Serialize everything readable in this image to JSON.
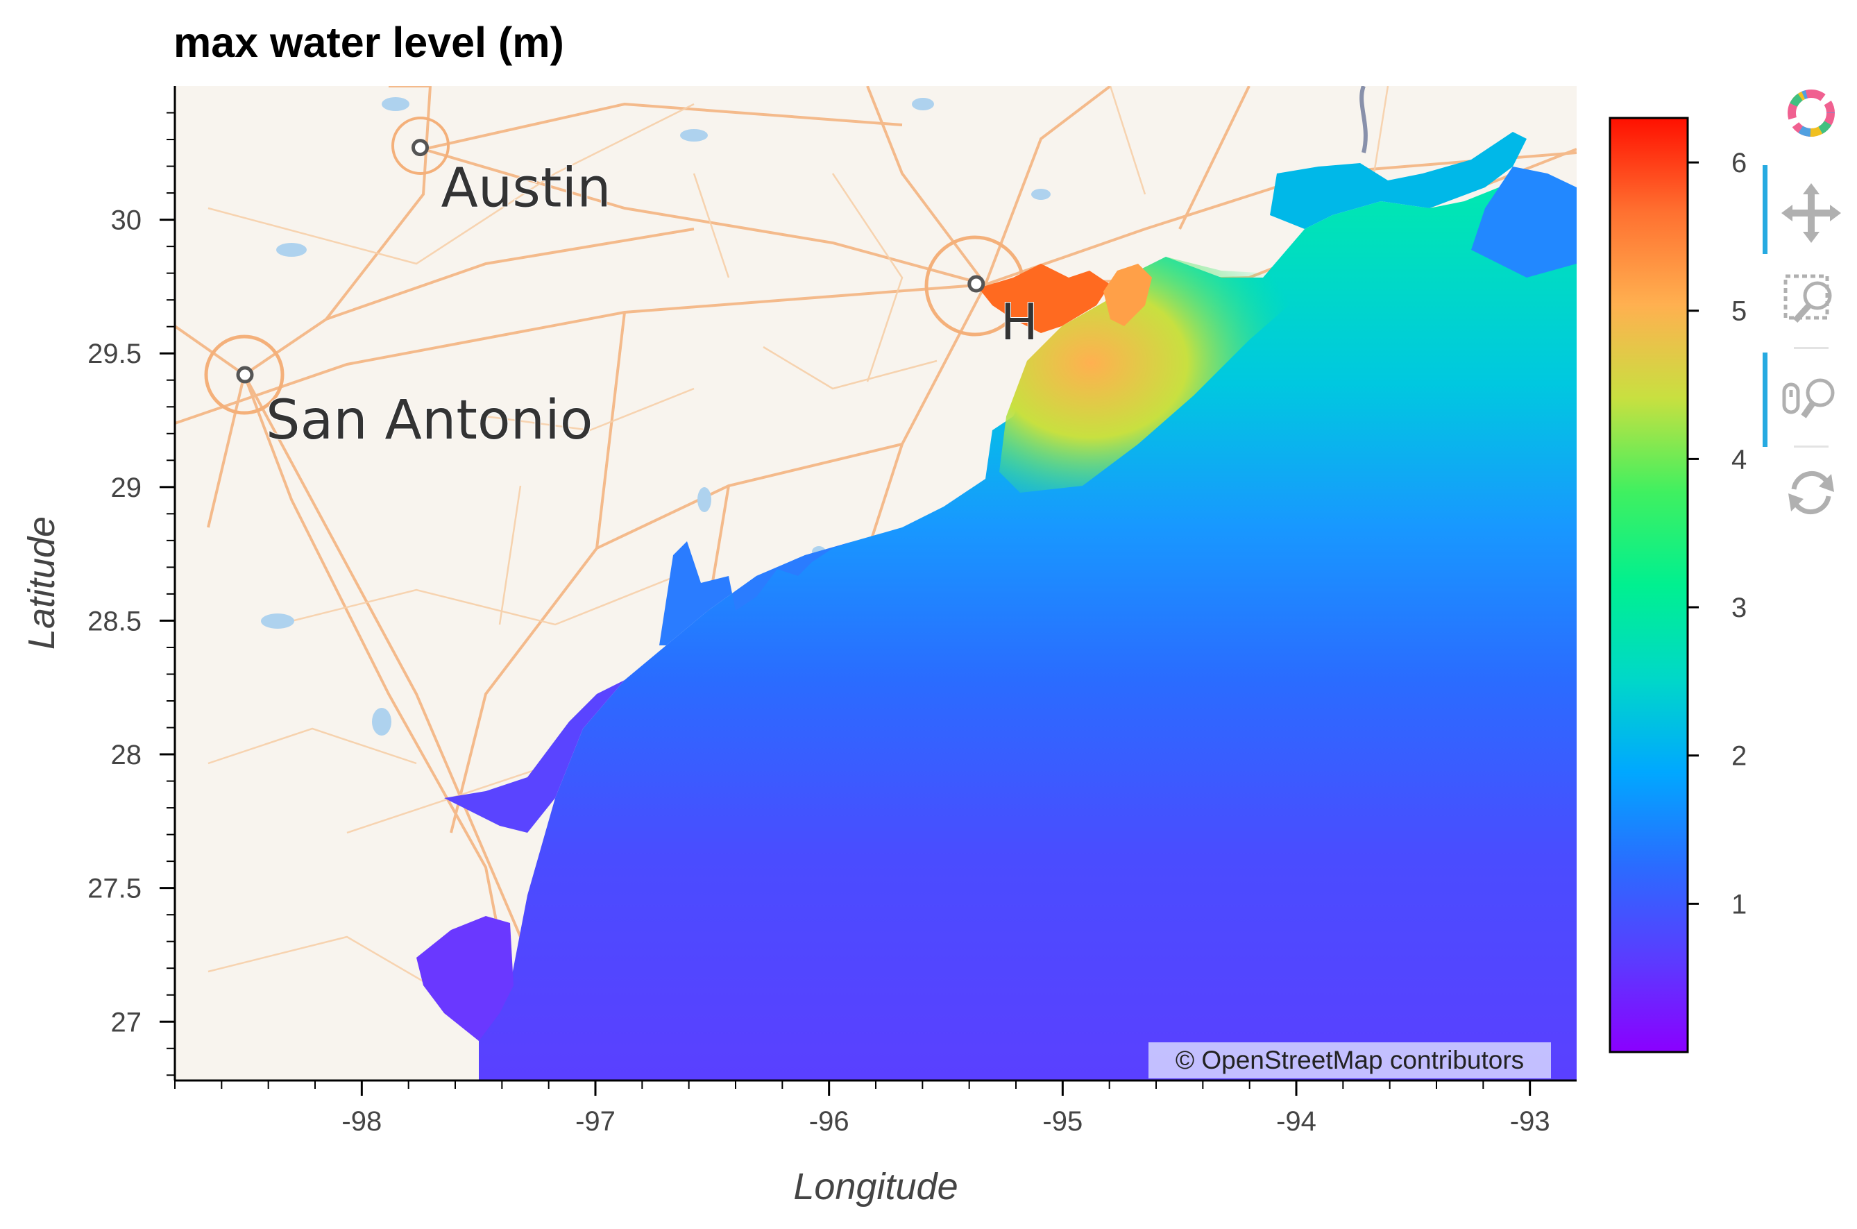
{
  "title": "max water level (m)",
  "axes": {
    "xlabel": "Longitude",
    "ylabel": "Latitude",
    "xlim": [
      -98.8,
      -92.8
    ],
    "ylim": [
      26.78,
      30.5
    ],
    "xticks": [
      -98,
      -97,
      -96,
      -95,
      -94,
      -93
    ],
    "yticks": [
      27,
      27.5,
      28,
      28.5,
      29,
      29.5,
      30
    ]
  },
  "colorbar": {
    "min": 0,
    "max": 6.3,
    "ticks": [
      1,
      2,
      3,
      4,
      5,
      6
    ],
    "colors": [
      "#8a00ff",
      "#5a3cff",
      "#2a6cff",
      "#00a8ff",
      "#00d8c8",
      "#00f090",
      "#40f060",
      "#c8e040",
      "#ffb050",
      "#ff7030",
      "#ff1000"
    ]
  },
  "map": {
    "basemap_colors": {
      "land": "#f8f4ee",
      "roads": "#f4b07a",
      "water": "#aed2ee"
    },
    "cities": [
      {
        "name": "Austin",
        "lon": -97.75,
        "lat": 30.27
      },
      {
        "name": "San Antonio",
        "lon": -98.5,
        "lat": 29.42
      },
      {
        "name": "H",
        "lon": -95.37,
        "lat": 29.76
      }
    ],
    "attribution": "© OpenStreetMap contributors"
  },
  "toolbar": {
    "logo": "bokeh-logo-icon",
    "tools": [
      {
        "name": "pan-icon",
        "active": true
      },
      {
        "name": "box-zoom-icon",
        "active": false
      },
      {
        "name": "wheel-zoom-icon",
        "active": true
      },
      {
        "name": "reset-icon",
        "active": false
      }
    ]
  }
}
